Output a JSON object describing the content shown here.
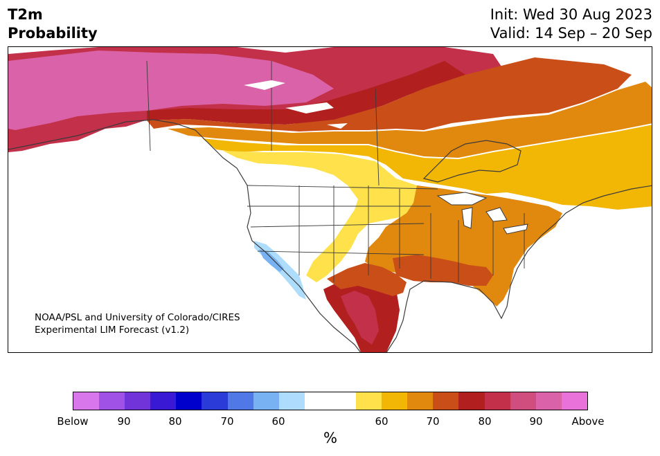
{
  "header": {
    "variable": "T2m",
    "quantity": "Probability",
    "init": "Init: Wed 30 Aug 2023",
    "valid": "Valid: 14 Sep – 20 Sep"
  },
  "credit": {
    "line1": "NOAA/PSL and University of Colorado/CIRES",
    "line2": "Experimental LIM Forecast (v1.2)"
  },
  "legend": {
    "unit": "%",
    "colors": [
      "#d877ec",
      "#a052e6",
      "#7034d8",
      "#3a19d4",
      "#0000cc",
      "#2a3bd8",
      "#5078e6",
      "#78b2f3",
      "#aedcfc",
      "#ffffff",
      "#ffffff",
      "#ffe14b",
      "#f2b705",
      "#e1880e",
      "#c94e18",
      "#b1201f",
      "#c2304a",
      "#cf4e7e",
      "#da62a8",
      "#e872d9"
    ],
    "labels": [
      "Below",
      "90",
      "80",
      "70",
      "60",
      "60",
      "70",
      "80",
      "90",
      "Above"
    ]
  },
  "map": {
    "region": "North America",
    "palette": {
      "above_90": "#da62a8",
      "above_80": "#c2304a",
      "above_70": "#b1201f",
      "above_60_70": "#c94e18",
      "above_60": "#e1880e",
      "above_50_60": "#f2b705",
      "above_low": "#ffe14b",
      "below_low": "#aedcfc",
      "below_60": "#78b2f3",
      "neutral": "#ffffff",
      "borders": "#3a3a3a"
    }
  }
}
